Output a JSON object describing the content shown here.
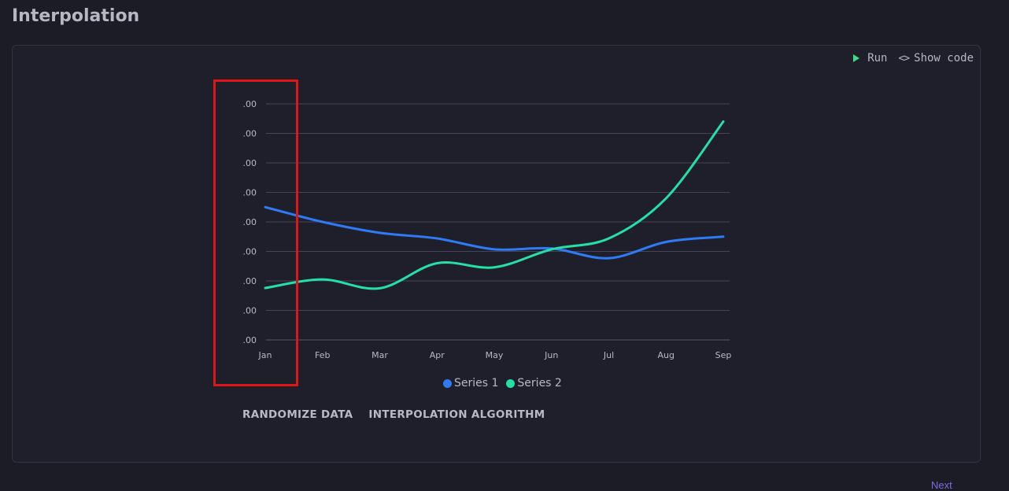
{
  "page": {
    "title": "Interpolation"
  },
  "toolbar": {
    "run_label": "Run",
    "code_icon": "<>",
    "show_code_label": "Show code"
  },
  "legend": [
    {
      "label": "Series 1",
      "color": "#2f7bf5"
    },
    {
      "label": "Series 2",
      "color": "#25e0a6"
    }
  ],
  "actions": {
    "randomize_label": "RANDOMIZE DATA",
    "interpolation_label": "INTERPOLATION ALGORITHM"
  },
  "footer": {
    "link_text": "Next"
  },
  "chart_data": {
    "type": "line",
    "categories": [
      "Jan",
      "Feb",
      "Mar",
      "Apr",
      "May",
      "Jun",
      "Jul",
      "Aug",
      "Sep"
    ],
    "y_tick_labels": [
      ".00",
      ".00",
      ".00",
      ".00",
      ".00",
      ".00",
      ".00",
      ".00",
      ".00"
    ],
    "y_levels": 9,
    "series": [
      {
        "name": "Series 1",
        "color": "#2f7bf5",
        "values": [
          4.5,
          4.0,
          3.63,
          3.44,
          3.07,
          3.1,
          2.77,
          3.32,
          3.5
        ]
      },
      {
        "name": "Series 2",
        "color": "#25e0a6",
        "values": [
          1.76,
          2.05,
          1.75,
          2.6,
          2.46,
          3.07,
          3.44,
          4.8,
          7.4
        ]
      }
    ],
    "ylim": [
      0,
      8
    ],
    "grid": true,
    "legend_position": "bottom",
    "interpolation": "smooth"
  }
}
